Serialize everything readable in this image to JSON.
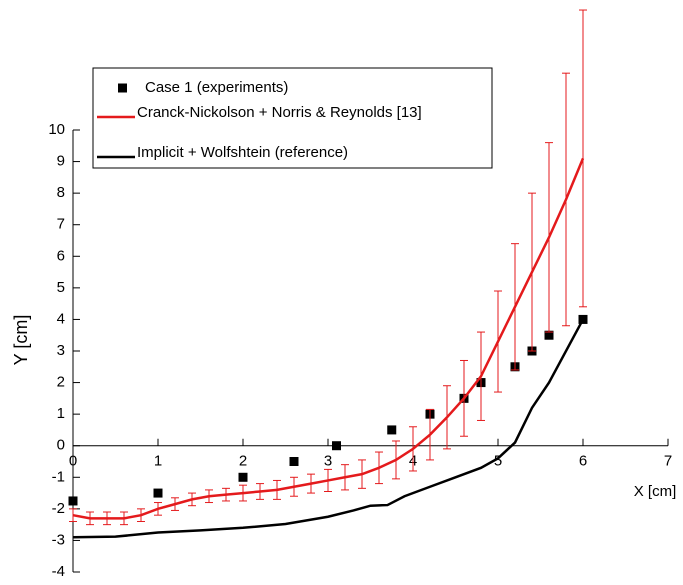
{
  "chart_data": {
    "type": "line",
    "xlabel": "X [cm]",
    "ylabel": "Y [cm]",
    "xlim": [
      0,
      7
    ],
    "ylim": [
      -4,
      10
    ],
    "xticks": [
      0,
      1,
      2,
      3,
      4,
      5,
      6,
      7
    ],
    "yticks": [
      -4,
      -3,
      -2,
      -1,
      0,
      1,
      2,
      3,
      4,
      5,
      6,
      7,
      8,
      9,
      10
    ],
    "series": [
      {
        "name": "Case 1 (experiments)",
        "style": "markers",
        "color": "#000000",
        "x": [
          0,
          1,
          2,
          2.6,
          3.1,
          3.75,
          4.2,
          4.6,
          4.8,
          5.2,
          5.4,
          5.6,
          6
        ],
        "values": [
          -1.75,
          -1.5,
          -1,
          -0.5,
          0,
          0.5,
          1,
          1.5,
          2,
          2.5,
          3,
          3.5,
          4
        ]
      },
      {
        "name": "Cranck-Nickolson + Norris & Reynolds [13]",
        "style": "line",
        "color": "#e41a1c",
        "x": [
          0,
          0.2,
          0.4,
          0.6,
          0.8,
          1,
          1.2,
          1.4,
          1.6,
          1.8,
          2,
          2.2,
          2.4,
          2.6,
          2.8,
          3,
          3.2,
          3.4,
          3.6,
          3.8,
          4,
          4.2,
          4.4,
          4.6,
          4.8,
          5,
          5.2,
          5.4,
          5.6,
          5.8,
          6
        ],
        "values": [
          -2.2,
          -2.3,
          -2.3,
          -2.3,
          -2.2,
          -2.0,
          -1.85,
          -1.7,
          -1.6,
          -1.55,
          -1.5,
          -1.45,
          -1.4,
          -1.3,
          -1.2,
          -1.1,
          -1.0,
          -0.9,
          -0.7,
          -0.45,
          -0.1,
          0.35,
          0.9,
          1.5,
          2.2,
          3.3,
          4.4,
          5.5,
          6.6,
          7.8,
          9.1
        ],
        "errors": [
          0.2,
          0.2,
          0.2,
          0.2,
          0.2,
          0.2,
          0.2,
          0.2,
          0.2,
          0.2,
          0.25,
          0.25,
          0.3,
          0.3,
          0.3,
          0.35,
          0.4,
          0.45,
          0.5,
          0.6,
          0.7,
          0.8,
          1.0,
          1.2,
          1.4,
          1.6,
          2.0,
          2.5,
          3.0,
          4.0,
          4.7
        ]
      },
      {
        "name": "Implicit + Wolfshtein (reference)",
        "style": "line",
        "color": "#000000",
        "x": [
          0,
          0.5,
          1,
          1.5,
          2,
          2.5,
          3,
          3.3,
          3.5,
          3.7,
          3.9,
          4.2,
          4.5,
          4.8,
          5,
          5.2,
          5.4,
          5.6,
          6
        ],
        "values": [
          -2.9,
          -2.88,
          -2.75,
          -2.68,
          -2.6,
          -2.48,
          -2.25,
          -2.05,
          -1.9,
          -1.88,
          -1.6,
          -1.3,
          -1.0,
          -0.7,
          -0.4,
          0.1,
          1.2,
          2.0,
          4.0
        ]
      }
    ]
  }
}
